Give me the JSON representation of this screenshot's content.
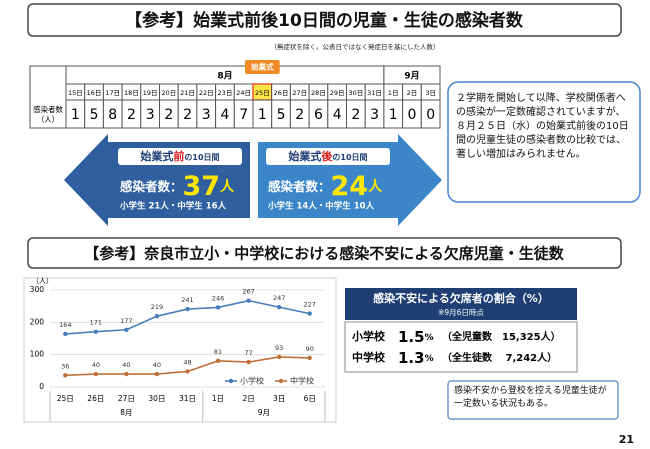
{
  "header": {
    "title": "【参考】始業式前後10日間の児童・生徒の感染者数",
    "note": "（無症状を除く。公表日ではなく発症日を基にした人数）"
  },
  "table": {
    "badge": "始業式",
    "months": [
      {
        "label": "8月",
        "days": [
          "15日",
          "16日",
          "17日",
          "18日",
          "19日",
          "20日",
          "21日",
          "22日",
          "23日",
          "24日",
          "25日",
          "26日",
          "27日",
          "28日",
          "29日",
          "30日",
          "31日"
        ]
      },
      {
        "label": "9月",
        "days": [
          "1日",
          "2日",
          "3日"
        ]
      }
    ],
    "row_label": [
      "感染者数",
      "（人）"
    ],
    "counts": [
      1,
      5,
      8,
      2,
      3,
      2,
      2,
      3,
      4,
      7,
      1,
      5,
      2,
      6,
      4,
      2,
      3,
      1,
      0,
      0
    ]
  },
  "info_text": "２学期を開始して以降、学校関係者への感染が一定数確認されていますが、８月２５日（水）の始業式前後の10日間の児童生徒の感染者数の比較では、著しい増加はみられません。",
  "before": {
    "label": [
      "始業式",
      "前",
      "の10日間"
    ],
    "count_label": "感染者数：",
    "count": 37,
    "unit": "人",
    "breakdown": "小学生 21人・中学生 16人"
  },
  "after": {
    "label": [
      "始業式",
      "後",
      "の10日間"
    ],
    "count_label": "感染者数：",
    "count": 24,
    "unit": "人",
    "breakdown": "小学生 14人・中学生 10人"
  },
  "section2": {
    "title": "【参考】奈良市立小・中学校における感染不安による欠席児童・生徒数"
  },
  "chart_data": {
    "type": "line",
    "y_unit": "（人）",
    "categories": [
      "25日",
      "26日",
      "27日",
      "30日",
      "31日",
      "1日",
      "2日",
      "3日",
      "6日"
    ],
    "months": [
      "8月",
      "9月"
    ],
    "series": [
      {
        "name": "小学校",
        "color": "#4a7ebb",
        "values": [
          164,
          171,
          177,
          219,
          241,
          246,
          267,
          247,
          227
        ]
      },
      {
        "name": "中学校",
        "color": "#c0713a",
        "values": [
          36,
          40,
          40,
          40,
          48,
          81,
          77,
          93,
          90
        ]
      }
    ],
    "ylim": [
      0,
      300
    ],
    "yticks": [
      0,
      100,
      200,
      300
    ],
    "grid": true
  },
  "ratio": {
    "title": "感染不安による欠席者の割合（%）",
    "note": "※9月6日時点",
    "rows": [
      {
        "school": "小学校",
        "value": 1.5,
        "unit": "%",
        "detail": "（全児童数　15,325人）"
      },
      {
        "school": "中学校",
        "value": 1.3,
        "unit": "%",
        "detail": "（全生徒数　 7,242人）"
      }
    ]
  },
  "note2": "感染不安から登校を控える児童生徒が一定数いる状況もある。",
  "page_number": "21"
}
